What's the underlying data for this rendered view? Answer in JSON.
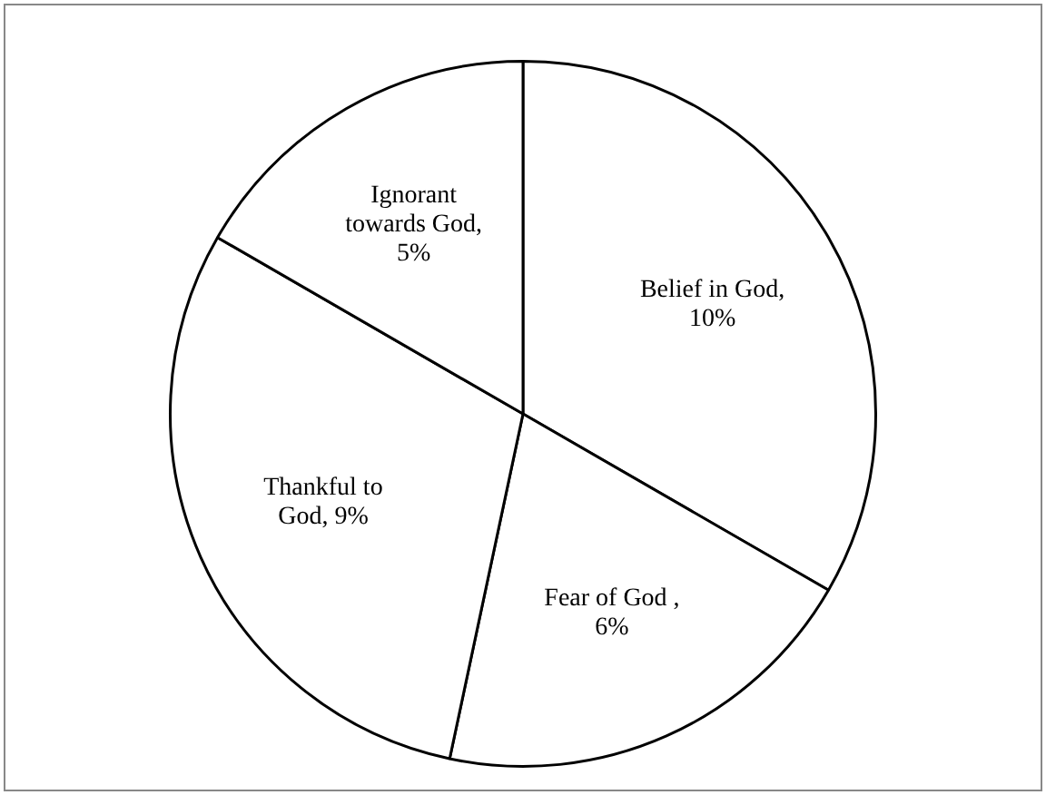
{
  "chart_data": {
    "type": "pie",
    "categories": [
      "Belief in God",
      "Fear of God",
      "Thankful to God",
      "Ignorant towards God"
    ],
    "values": [
      10,
      6,
      9,
      5
    ],
    "colors": [
      "#ffffff",
      "#ffffff",
      "#ffffff",
      "#ffffff"
    ],
    "value_labels": [
      ", 10%",
      " , 6%",
      ", 9%",
      ", 5%"
    ],
    "legend": false
  }
}
